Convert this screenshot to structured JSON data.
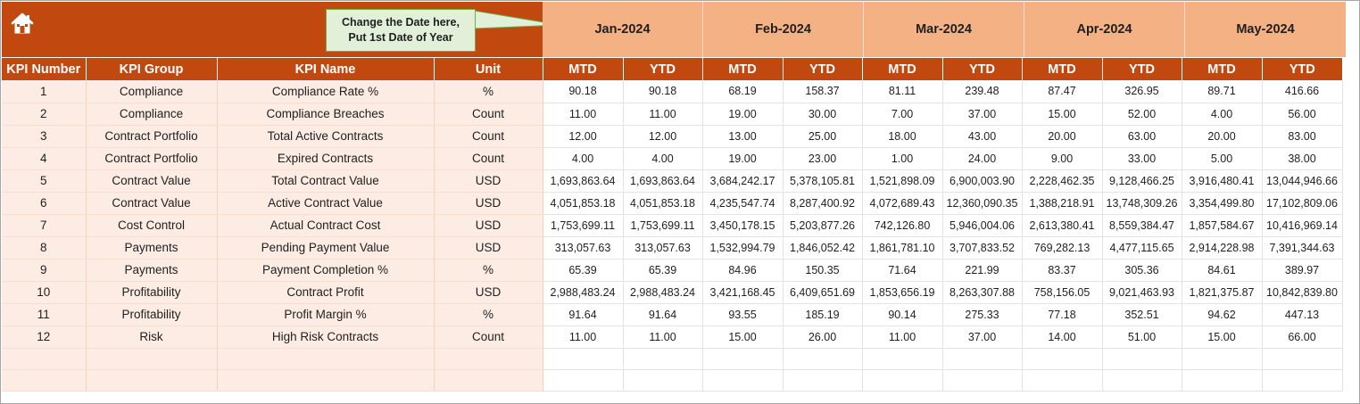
{
  "callout": {
    "line1": "Change the Date here,",
    "line2": "Put 1st Date of Year"
  },
  "months": [
    "Jan-2024",
    "Feb-2024",
    "Mar-2024",
    "Apr-2024",
    "May-2024"
  ],
  "columns": {
    "kpi_number": "KPI Number",
    "kpi_group": "KPI Group",
    "kpi_name": "KPI Name",
    "unit": "Unit",
    "mtd": "MTD",
    "ytd": "YTD"
  },
  "rows": [
    {
      "num": "1",
      "group": "Compliance",
      "name": "Compliance Rate %",
      "unit": "%",
      "values": [
        "90.18",
        "90.18",
        "68.19",
        "158.37",
        "81.11",
        "239.48",
        "87.47",
        "326.95",
        "89.71",
        "416.66"
      ]
    },
    {
      "num": "2",
      "group": "Compliance",
      "name": "Compliance Breaches",
      "unit": "Count",
      "values": [
        "11.00",
        "11.00",
        "19.00",
        "30.00",
        "7.00",
        "37.00",
        "15.00",
        "52.00",
        "4.00",
        "56.00"
      ]
    },
    {
      "num": "3",
      "group": "Contract Portfolio",
      "name": "Total Active Contracts",
      "unit": "Count",
      "values": [
        "12.00",
        "12.00",
        "13.00",
        "25.00",
        "18.00",
        "43.00",
        "20.00",
        "63.00",
        "20.00",
        "83.00"
      ]
    },
    {
      "num": "4",
      "group": "Contract Portfolio",
      "name": "Expired Contracts",
      "unit": "Count",
      "values": [
        "4.00",
        "4.00",
        "19.00",
        "23.00",
        "1.00",
        "24.00",
        "9.00",
        "33.00",
        "5.00",
        "38.00"
      ]
    },
    {
      "num": "5",
      "group": "Contract Value",
      "name": "Total Contract Value",
      "unit": "USD",
      "values": [
        "1,693,863.64",
        "1,693,863.64",
        "3,684,242.17",
        "5,378,105.81",
        "1,521,898.09",
        "6,900,003.90",
        "2,228,462.35",
        "9,128,466.25",
        "3,916,480.41",
        "13,044,946.66"
      ]
    },
    {
      "num": "6",
      "group": "Contract Value",
      "name": "Active Contract Value",
      "unit": "USD",
      "values": [
        "4,051,853.18",
        "4,051,853.18",
        "4,235,547.74",
        "8,287,400.92",
        "4,072,689.43",
        "12,360,090.35",
        "1,388,218.91",
        "13,748,309.26",
        "3,354,499.80",
        "17,102,809.06"
      ]
    },
    {
      "num": "7",
      "group": "Cost Control",
      "name": "Actual Contract Cost",
      "unit": "USD",
      "values": [
        "1,753,699.11",
        "1,753,699.11",
        "3,450,178.15",
        "5,203,877.26",
        "742,126.80",
        "5,946,004.06",
        "2,613,380.41",
        "8,559,384.47",
        "1,857,584.67",
        "10,416,969.14"
      ]
    },
    {
      "num": "8",
      "group": "Payments",
      "name": "Pending Payment Value",
      "unit": "USD",
      "values": [
        "313,057.63",
        "313,057.63",
        "1,532,994.79",
        "1,846,052.42",
        "1,861,781.10",
        "3,707,833.52",
        "769,282.13",
        "4,477,115.65",
        "2,914,228.98",
        "7,391,344.63"
      ]
    },
    {
      "num": "9",
      "group": "Payments",
      "name": "Payment Completion %",
      "unit": "%",
      "values": [
        "65.39",
        "65.39",
        "84.96",
        "150.35",
        "71.64",
        "221.99",
        "83.37",
        "305.36",
        "84.61",
        "389.97"
      ]
    },
    {
      "num": "10",
      "group": "Profitability",
      "name": "Contract Profit",
      "unit": "USD",
      "values": [
        "2,988,483.24",
        "2,988,483.24",
        "3,421,168.45",
        "6,409,651.69",
        "1,853,656.19",
        "8,263,307.88",
        "758,156.05",
        "9,021,463.93",
        "1,821,375.87",
        "10,842,839.80"
      ]
    },
    {
      "num": "11",
      "group": "Profitability",
      "name": "Profit Margin %",
      "unit": "%",
      "values": [
        "91.64",
        "91.64",
        "93.55",
        "185.19",
        "90.14",
        "275.33",
        "77.18",
        "352.51",
        "94.62",
        "447.13"
      ]
    },
    {
      "num": "12",
      "group": "Risk",
      "name": "High Risk Contracts",
      "unit": "Count",
      "values": [
        "11.00",
        "11.00",
        "15.00",
        "26.00",
        "11.00",
        "37.00",
        "14.00",
        "51.00",
        "15.00",
        "66.00"
      ]
    }
  ],
  "empty_rows": 2,
  "colors": {
    "header_dark": "#c1480f",
    "header_light": "#f4b183",
    "info_cell": "#fdece3",
    "callout_fill": "#e2f0d9",
    "callout_border": "#70ad47"
  },
  "icons": {
    "home": "home-icon"
  }
}
